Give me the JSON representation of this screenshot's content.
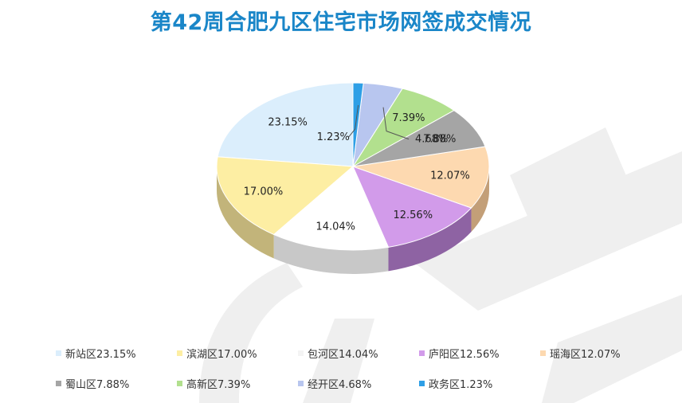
{
  "title": "第42周合肥九区住宅市场网签成交情况",
  "chart_data": {
    "type": "pie",
    "title": "第42周合肥九区住宅市场网签成交情况",
    "legend_position": "bottom",
    "slices": [
      {
        "name": "新站区",
        "value": 23.15,
        "label": "23.15%",
        "legend": "新站区23.15%",
        "color": "#dbeefc",
        "side": "#9fb2c4"
      },
      {
        "name": "滨湖区",
        "value": 17.0,
        "label": "17.00%",
        "legend": "滨湖区17.00%",
        "color": "#fdeea3",
        "side": "#c2b47a"
      },
      {
        "name": "包河区",
        "value": 14.04,
        "label": "14.04%",
        "legend": "包河区14.04%",
        "color": "#ffffff",
        "side": "#c8c8c8"
      },
      {
        "name": "庐阳区",
        "value": 12.56,
        "label": "12.56%",
        "legend": "庐阳区12.56%",
        "color": "#d29bea",
        "side": "#8e63a3"
      },
      {
        "name": "瑶海区",
        "value": 12.07,
        "label": "12.07%",
        "legend": "瑶海区12.07%",
        "color": "#fdd9b0",
        "side": "#c39f78"
      },
      {
        "name": "蜀山区",
        "value": 7.88,
        "label": "7.88%",
        "legend": "蜀山区7.88%",
        "color": "#a5a5a5",
        "side": "#4a4a4a"
      },
      {
        "name": "高新区",
        "value": 7.39,
        "label": "7.39%",
        "legend": "高新区7.39%",
        "color": "#b2e08e",
        "side": "#4b6234"
      },
      {
        "name": "经开区",
        "value": 4.68,
        "label": "4.68%",
        "legend": "经开区4.68%",
        "color": "#b8c6ef",
        "side": "#505a75"
      },
      {
        "name": "政务区",
        "value": 1.23,
        "label": "1.23%",
        "legend": "政务区1.23%",
        "color": "#2e9fe6",
        "side": "#1f4f82"
      }
    ]
  }
}
